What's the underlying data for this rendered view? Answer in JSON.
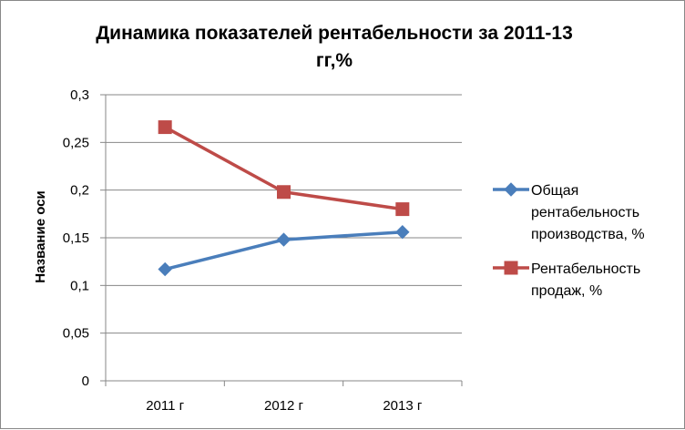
{
  "chart_data": {
    "type": "line",
    "title_line1": "Динамика показателей рентабельности за 2011-13",
    "title_line2": "гг,%",
    "ylabel": "Название оси",
    "xlabel": "",
    "categories": [
      "2011 г",
      "2012 г",
      "2013 г"
    ],
    "ylim": [
      0,
      0.3
    ],
    "yticks": [
      0,
      0.05,
      0.1,
      0.15,
      0.2,
      0.25,
      0.3
    ],
    "ytick_labels": [
      "0",
      "0,05",
      "0,1",
      "0,15",
      "0,2",
      "0,25",
      "0,3"
    ],
    "grid": true,
    "legend_position": "right",
    "series": [
      {
        "name_lines": [
          "Общая",
          "рентабельность",
          "производства, %"
        ],
        "values": [
          0.117,
          0.148,
          0.156
        ],
        "color": "#4a7ebb",
        "marker": "diamond"
      },
      {
        "name_lines": [
          "Рентабельность",
          "продаж, %"
        ],
        "values": [
          0.266,
          0.198,
          0.18
        ],
        "color": "#be4b48",
        "marker": "square"
      }
    ]
  }
}
